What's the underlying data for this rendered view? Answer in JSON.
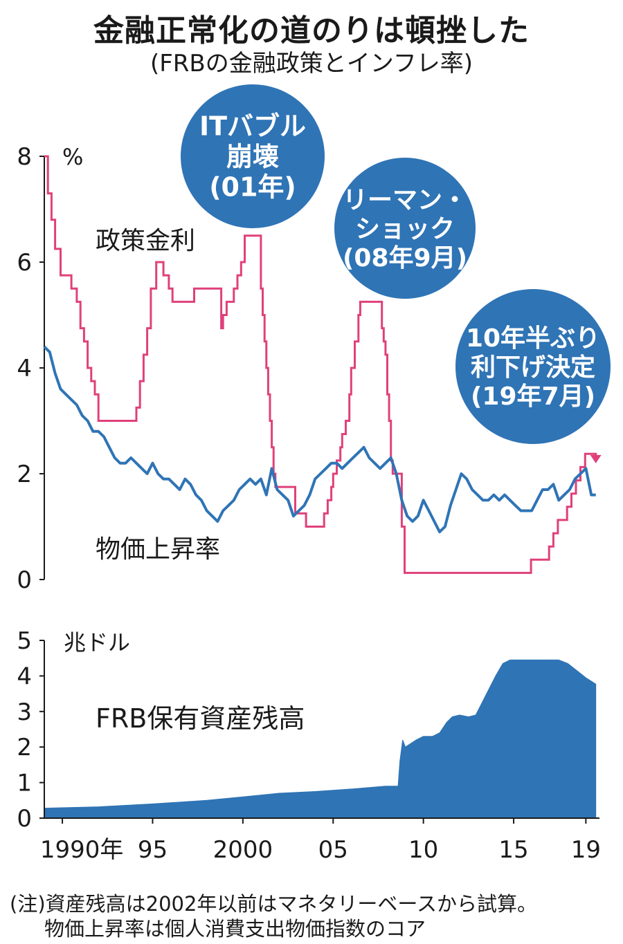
{
  "title": "金融正常化の道のりは頓挫した",
  "subtitle": "(FRBの金融政策とインフレ率)",
  "colors": {
    "policy_rate": "#e0407a",
    "inflation": "#2f74b5",
    "balance": "#2f74b5",
    "bubble": "#2f74b5",
    "axis": "#1a1a1a"
  },
  "notes": {
    "line1": "(注)資産残高は2002年以前はマネタリーベースから試算。",
    "line2": "物価上昇率は個人消費支出物価指数のコア"
  },
  "chart_data": [
    {
      "type": "line",
      "ylabel": "%",
      "ylim": [
        0,
        8
      ],
      "yticks": [
        "0",
        "2",
        "4",
        "6",
        "8"
      ],
      "xlim": [
        1989.0,
        2019.6
      ],
      "series": [
        {
          "name": "政策金利",
          "step": true,
          "x": [
            1989.0,
            1989.2,
            1989.4,
            1989.6,
            1989.9,
            1990.5,
            1990.8,
            1991.0,
            1991.2,
            1991.4,
            1991.6,
            1991.8,
            1992.0,
            1992.3,
            1992.7,
            1994.1,
            1994.3,
            1994.5,
            1994.7,
            1994.9,
            1995.2,
            1995.6,
            1995.9,
            1996.1,
            1997.3,
            1998.8,
            1998.9,
            1999.1,
            1999.5,
            1999.7,
            1999.9,
            2000.1,
            2000.4,
            2001.0,
            2001.1,
            2001.2,
            2001.3,
            2001.4,
            2001.5,
            2001.6,
            2001.7,
            2001.8,
            2001.9,
            2002.9,
            2003.5,
            2004.5,
            2004.7,
            2004.9,
            2005.0,
            2005.2,
            2005.4,
            2005.5,
            2005.7,
            2005.9,
            2006.0,
            2006.2,
            2006.4,
            2006.5,
            2007.7,
            2007.8,
            2007.9,
            2008.0,
            2008.1,
            2008.2,
            2008.3,
            2008.8,
            2008.96,
            2015.96,
            2016.96,
            2017.2,
            2017.45,
            2017.96,
            2018.2,
            2018.45,
            2018.7,
            2018.96,
            2019.55
          ],
          "values": [
            8.0,
            7.3,
            6.8,
            6.25,
            5.75,
            5.5,
            5.25,
            4.75,
            4.5,
            4.0,
            3.75,
            3.5,
            3.0,
            3.0,
            3.0,
            3.25,
            3.75,
            4.25,
            4.75,
            5.5,
            6.0,
            5.75,
            5.5,
            5.25,
            5.5,
            4.75,
            5.0,
            5.25,
            5.5,
            5.75,
            6.0,
            6.5,
            6.5,
            5.5,
            5.0,
            4.5,
            4.0,
            3.5,
            3.0,
            2.5,
            2.0,
            1.75,
            1.75,
            1.25,
            1.0,
            1.25,
            1.5,
            1.75,
            2.0,
            2.25,
            2.5,
            2.75,
            3.0,
            3.5,
            4.0,
            4.5,
            5.0,
            5.25,
            4.75,
            4.5,
            4.25,
            3.5,
            3.0,
            2.25,
            2.0,
            1.0,
            0.125,
            0.375,
            0.625,
            0.875,
            1.125,
            1.375,
            1.625,
            1.875,
            2.125,
            2.375,
            2.25
          ]
        },
        {
          "name": "物価上昇率",
          "x": [
            1989.0,
            1989.3,
            1989.6,
            1989.9,
            1990.2,
            1990.5,
            1990.8,
            1991.1,
            1991.4,
            1991.7,
            1992.0,
            1992.3,
            1992.6,
            1992.9,
            1993.2,
            1993.5,
            1993.8,
            1994.1,
            1994.4,
            1994.7,
            1995.0,
            1995.3,
            1995.6,
            1995.9,
            1996.2,
            1996.5,
            1996.8,
            1997.1,
            1997.4,
            1997.7,
            1998.0,
            1998.3,
            1998.6,
            1998.9,
            1999.2,
            1999.5,
            1999.8,
            2000.1,
            2000.4,
            2000.7,
            2001.0,
            2001.3,
            2001.6,
            2001.9,
            2002.2,
            2002.5,
            2002.8,
            2003.1,
            2003.4,
            2003.7,
            2004.0,
            2004.3,
            2004.6,
            2004.9,
            2005.2,
            2005.5,
            2005.8,
            2006.1,
            2006.4,
            2006.7,
            2007.0,
            2007.3,
            2007.6,
            2007.9,
            2008.2,
            2008.5,
            2008.8,
            2009.1,
            2009.4,
            2009.7,
            2010.0,
            2010.3,
            2010.6,
            2010.9,
            2011.2,
            2011.5,
            2011.8,
            2012.1,
            2012.4,
            2012.7,
            2013.0,
            2013.3,
            2013.6,
            2013.9,
            2014.2,
            2014.5,
            2014.8,
            2015.1,
            2015.4,
            2015.7,
            2016.0,
            2016.3,
            2016.6,
            2016.9,
            2017.2,
            2017.5,
            2017.8,
            2018.1,
            2018.4,
            2018.7,
            2019.0,
            2019.3,
            2019.55
          ],
          "values": [
            4.4,
            4.3,
            3.9,
            3.6,
            3.5,
            3.4,
            3.3,
            3.1,
            3.0,
            2.8,
            2.8,
            2.7,
            2.5,
            2.3,
            2.2,
            2.2,
            2.3,
            2.2,
            2.1,
            2.0,
            2.2,
            2.0,
            1.9,
            1.9,
            1.8,
            1.7,
            1.9,
            1.8,
            1.6,
            1.5,
            1.3,
            1.2,
            1.1,
            1.3,
            1.4,
            1.5,
            1.7,
            1.8,
            1.9,
            1.8,
            1.9,
            1.6,
            2.1,
            1.7,
            1.6,
            1.5,
            1.2,
            1.3,
            1.4,
            1.6,
            1.9,
            2.0,
            2.1,
            2.2,
            2.2,
            2.1,
            2.2,
            2.3,
            2.4,
            2.5,
            2.3,
            2.2,
            2.1,
            2.2,
            2.3,
            2.0,
            1.5,
            1.2,
            1.1,
            1.2,
            1.5,
            1.3,
            1.1,
            0.9,
            1.0,
            1.4,
            1.7,
            2.0,
            1.9,
            1.7,
            1.6,
            1.5,
            1.5,
            1.6,
            1.5,
            1.6,
            1.5,
            1.4,
            1.3,
            1.3,
            1.3,
            1.5,
            1.7,
            1.7,
            1.8,
            1.5,
            1.6,
            1.7,
            1.9,
            2.0,
            2.1,
            1.6,
            1.6
          ]
        }
      ],
      "annotations": [
        {
          "text": "ITバブル\n崩壊\n(01年)"
        },
        {
          "text": "リーマン・\nショック\n(08年9月)"
        },
        {
          "text": "10年半ぶり\n利下げ決定\n(19年7月)"
        }
      ]
    },
    {
      "type": "area",
      "ylabel": "兆ドル",
      "ylim": [
        0,
        5
      ],
      "yticks": [
        "0",
        "1",
        "2",
        "3",
        "4",
        "5"
      ],
      "xlim": [
        1989.0,
        2019.6
      ],
      "xticks": [
        1990,
        1995,
        2000,
        2005,
        2010,
        2015,
        2019
      ],
      "xticklabels": [
        "1990年",
        "95",
        "2000",
        "05",
        "10",
        "15",
        "19"
      ],
      "series": [
        {
          "name": "FRB保有資産残高",
          "x": [
            1989.0,
            1992.0,
            1995.0,
            1998.0,
            2000.0,
            2002.0,
            2004.0,
            2006.0,
            2007.9,
            2008.6,
            2008.7,
            2008.85,
            2009.0,
            2009.3,
            2009.6,
            2010.0,
            2010.5,
            2010.9,
            2011.3,
            2011.6,
            2012.0,
            2012.5,
            2012.9,
            2013.3,
            2013.7,
            2014.0,
            2014.4,
            2014.8,
            2015.5,
            2016.5,
            2017.5,
            2018.0,
            2018.5,
            2019.0,
            2019.55
          ],
          "values": [
            0.28,
            0.32,
            0.4,
            0.5,
            0.6,
            0.7,
            0.75,
            0.82,
            0.9,
            0.9,
            1.6,
            2.2,
            2.0,
            2.1,
            2.2,
            2.3,
            2.3,
            2.4,
            2.7,
            2.85,
            2.9,
            2.85,
            2.9,
            3.3,
            3.7,
            4.0,
            4.35,
            4.45,
            4.45,
            4.45,
            4.45,
            4.35,
            4.15,
            3.95,
            3.77
          ]
        }
      ]
    }
  ]
}
